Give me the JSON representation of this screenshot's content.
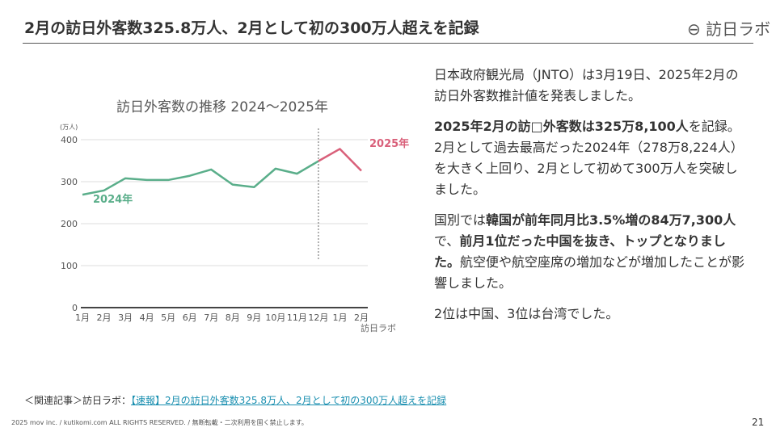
{
  "header": {
    "title": "2月の訪日外客数325.8万人、2月として初の300万人超えを記録",
    "logo": "訪日ラボ"
  },
  "chart_data": {
    "type": "line",
    "title": "訪日外客数の推移 2024〜2025年",
    "y_unit": "(万人)",
    "watermark": "訪日ラボ",
    "categories": [
      "1月",
      "2月",
      "3月",
      "4月",
      "5月",
      "6月",
      "7月",
      "8月",
      "9月",
      "10月",
      "11月",
      "12月",
      "1月",
      "2月"
    ],
    "series": [
      {
        "name": "2024年",
        "color": "#5aae8a",
        "values": [
          269,
          279,
          308,
          304,
          304,
          314,
          329,
          293,
          287,
          331,
          319,
          349,
          null,
          null
        ]
      },
      {
        "name": "2025年",
        "color": "#d9607a",
        "values": [
          null,
          null,
          null,
          null,
          null,
          null,
          null,
          null,
          null,
          null,
          null,
          349,
          378,
          326
        ]
      }
    ],
    "ylim": [
      0,
      400
    ],
    "yticks": [
      0,
      100,
      200,
      300,
      400
    ],
    "grid": true,
    "divider_category": 11
  },
  "body": {
    "paragraphs": [
      [
        {
          "text": "日本政府観光局（JNTO）は3月19日、2025年2月の訪日外客数推計値を発表しました。",
          "bold": false
        }
      ],
      [
        {
          "text": "2025年2月の訪□外客数は325万8,100人",
          "bold": true
        },
        {
          "text": "を記録。2月として過去最高だった2024年（278万8,224人）を大きく上回り、2月として初めて300万人を突破しました。",
          "bold": false
        }
      ],
      [
        {
          "text": "国別では",
          "bold": false
        },
        {
          "text": "韓国が前年同月比3.5%増の84万7,300人",
          "bold": true
        },
        {
          "text": "で、",
          "bold": false
        },
        {
          "text": "前月1位だった中国を抜き、トップとなりました。",
          "bold": true
        },
        {
          "text": "航空便や航空座席の増加などが増加したことが影響しました。",
          "bold": false
        }
      ],
      [
        {
          "text": "2位は中国、3位は台湾でした。",
          "bold": false
        }
      ]
    ]
  },
  "footer": {
    "related_label": "＜関連記事＞訪日ラボ：",
    "related_link": "【速報】2月の訪日外客数325.8万人、2月として初の300万人超えを記録",
    "copyright": "2025 mov inc. / kutikomi.com ALL RIGHTS RESERVED. / 無断転載・二次利用を固く禁止します。",
    "page": "21"
  }
}
